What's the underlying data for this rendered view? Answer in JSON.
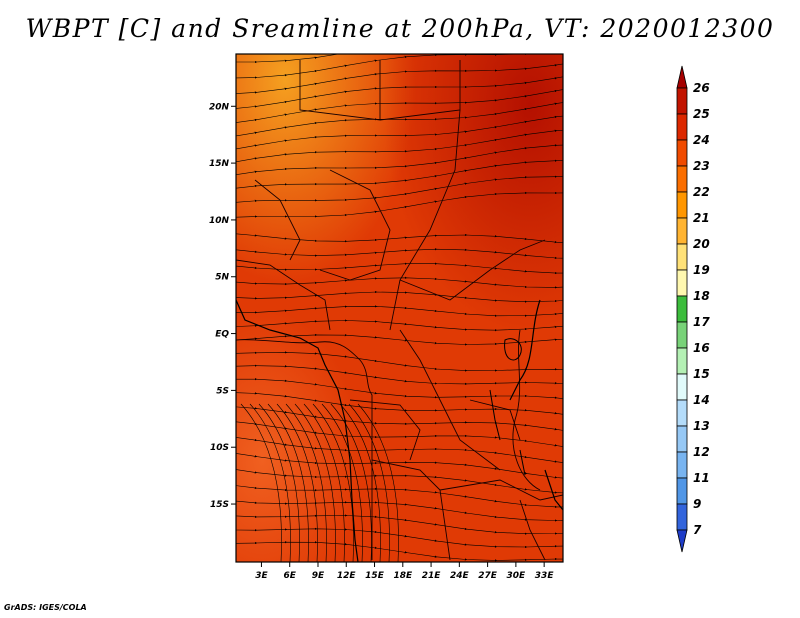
{
  "title": "WBPT [C] and Sreamline at 200hPa, VT: 2020012300",
  "credit": "GrADS: IGES/COLA",
  "map": {
    "lat_labels": [
      "20N",
      "15N",
      "10N",
      "5N",
      "EQ",
      "5S",
      "10S",
      "15S"
    ],
    "lat_values": [
      20,
      15,
      10,
      5,
      0,
      -5,
      -10,
      -15
    ],
    "lon_labels": [
      "3E",
      "6E",
      "9E",
      "12E",
      "15E",
      "18E",
      "21E",
      "24E",
      "27E",
      "30E",
      "33E"
    ],
    "lon_values": [
      3,
      6,
      9,
      12,
      15,
      18,
      21,
      24,
      27,
      30,
      33
    ]
  },
  "colorbar": {
    "labels": [
      "26",
      "25",
      "24",
      "23",
      "22",
      "21",
      "20",
      "19",
      "18",
      "17",
      "16",
      "15",
      "14",
      "13",
      "12",
      "11",
      "9",
      "7"
    ],
    "colors": [
      "#a50000",
      "#c21400",
      "#dc2800",
      "#f04b00",
      "#fa6e00",
      "#ff9600",
      "#ffb432",
      "#ffe178",
      "#fff8b0",
      "#3cbc3c",
      "#78d278",
      "#b4f0b4",
      "#e1fafa",
      "#b4dcfa",
      "#96c8f5",
      "#78b4f0",
      "#5096e6",
      "#3264dc",
      "#1e3cc8"
    ]
  }
}
